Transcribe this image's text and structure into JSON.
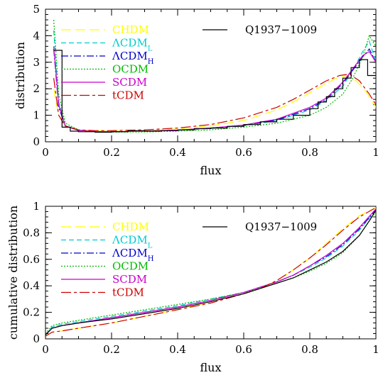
{
  "chart_data": [
    {
      "type": "line",
      "xlabel": "flux",
      "ylabel": "distribution",
      "xlim": [
        0,
        1
      ],
      "ylim": [
        0,
        5
      ],
      "xticks": [
        0,
        0.2,
        0.4,
        0.6,
        0.8,
        1
      ],
      "xtick_labels": [
        "0",
        "0.2",
        "0.4",
        "0.6",
        "0.8",
        "1"
      ],
      "yticks": [
        0,
        1,
        2,
        3,
        4,
        5
      ],
      "ytick_labels": [
        "0",
        "1",
        "2",
        "3",
        "4",
        "5"
      ],
      "legend_placement": "top",
      "observed": {
        "name": "Q1937−1009",
        "style": "histogram",
        "bin_edges": [
          0.025,
          0.05,
          0.075,
          0.1,
          0.15,
          0.2,
          0.25,
          0.3,
          0.35,
          0.4,
          0.45,
          0.5,
          0.55,
          0.6,
          0.65,
          0.7,
          0.75,
          0.8,
          0.825,
          0.85,
          0.875,
          0.9,
          0.925,
          0.95,
          0.975,
          1.0
        ],
        "values": [
          3.45,
          0.55,
          0.4,
          0.38,
          0.36,
          0.38,
          0.42,
          0.4,
          0.42,
          0.45,
          0.5,
          0.52,
          0.58,
          0.65,
          0.75,
          0.85,
          1.0,
          1.25,
          1.5,
          1.7,
          2.0,
          2.4,
          2.8,
          3.1,
          2.5
        ]
      },
      "series": [
        {
          "name": "CHDM",
          "color": "#ffff00",
          "dash": "14 6",
          "x": [
            0.025,
            0.04,
            0.06,
            0.1,
            0.15,
            0.2,
            0.3,
            0.4,
            0.5,
            0.6,
            0.7,
            0.75,
            0.8,
            0.85,
            0.88,
            0.91,
            0.94,
            0.97,
            1.0
          ],
          "y": [
            2.0,
            1.0,
            0.6,
            0.45,
            0.42,
            0.4,
            0.42,
            0.48,
            0.6,
            0.8,
            1.2,
            1.5,
            1.85,
            2.2,
            2.4,
            2.5,
            2.3,
            1.9,
            1.3
          ]
        },
        {
          "name": "ΛCDM_L",
          "color": "#00cccc",
          "dash": "7 4",
          "x": [
            0.025,
            0.04,
            0.06,
            0.1,
            0.15,
            0.2,
            0.3,
            0.4,
            0.5,
            0.6,
            0.7,
            0.8,
            0.85,
            0.9,
            0.93,
            0.96,
            0.98,
            1.0
          ],
          "y": [
            4.2,
            1.5,
            0.6,
            0.42,
            0.38,
            0.37,
            0.4,
            0.43,
            0.5,
            0.6,
            0.8,
            1.2,
            1.55,
            2.1,
            2.7,
            3.4,
            3.8,
            3.0
          ]
        },
        {
          "name": "ΛCDM_H",
          "color": "#0000cc",
          "dash": "10 3 2 3",
          "x": [
            0.025,
            0.04,
            0.06,
            0.1,
            0.15,
            0.2,
            0.3,
            0.4,
            0.5,
            0.6,
            0.7,
            0.8,
            0.85,
            0.9,
            0.93,
            0.96,
            0.98,
            1.0
          ],
          "y": [
            3.5,
            1.3,
            0.6,
            0.43,
            0.39,
            0.38,
            0.4,
            0.44,
            0.52,
            0.62,
            0.82,
            1.25,
            1.6,
            2.2,
            2.7,
            3.2,
            3.5,
            3.0
          ]
        },
        {
          "name": "OCDM",
          "color": "#00bb00",
          "dash": "2 2",
          "x": [
            0.025,
            0.04,
            0.06,
            0.1,
            0.15,
            0.2,
            0.3,
            0.4,
            0.5,
            0.6,
            0.7,
            0.8,
            0.85,
            0.9,
            0.93,
            0.96,
            0.98,
            1.0
          ],
          "y": [
            4.6,
            1.8,
            0.7,
            0.45,
            0.38,
            0.36,
            0.37,
            0.4,
            0.45,
            0.55,
            0.7,
            1.0,
            1.3,
            1.8,
            2.4,
            3.2,
            4.0,
            3.6
          ]
        },
        {
          "name": "SCDM",
          "color": "#cc00cc",
          "dash": "",
          "x": [
            0.025,
            0.04,
            0.06,
            0.1,
            0.15,
            0.2,
            0.3,
            0.4,
            0.5,
            0.6,
            0.7,
            0.8,
            0.85,
            0.9,
            0.93,
            0.96,
            0.98,
            1.0
          ],
          "y": [
            3.6,
            1.4,
            0.6,
            0.43,
            0.39,
            0.38,
            0.4,
            0.44,
            0.52,
            0.63,
            0.85,
            1.3,
            1.65,
            2.25,
            2.75,
            3.25,
            3.4,
            3.0
          ]
        },
        {
          "name": "tCDM",
          "color": "#cc0000",
          "dash": "14 4 4 4",
          "x": [
            0.025,
            0.04,
            0.06,
            0.1,
            0.15,
            0.2,
            0.3,
            0.4,
            0.5,
            0.6,
            0.7,
            0.75,
            0.8,
            0.85,
            0.89,
            0.92,
            0.95,
            0.98,
            1.0
          ],
          "y": [
            2.4,
            1.0,
            0.6,
            0.45,
            0.42,
            0.42,
            0.45,
            0.52,
            0.65,
            0.9,
            1.3,
            1.6,
            1.95,
            2.3,
            2.5,
            2.55,
            2.3,
            1.8,
            1.4
          ]
        }
      ]
    },
    {
      "type": "line",
      "xlabel": "flux",
      "ylabel": "cumulative distribution",
      "xlim": [
        0,
        1
      ],
      "ylim": [
        0,
        1
      ],
      "xticks": [
        0,
        0.2,
        0.4,
        0.6,
        0.8,
        1
      ],
      "xtick_labels": [
        "0",
        "0.2",
        "0.4",
        "0.6",
        "0.8",
        "1"
      ],
      "yticks": [
        0,
        0.2,
        0.4,
        0.6,
        0.8,
        1
      ],
      "ytick_labels": [
        "0",
        "0.2",
        "0.4",
        "0.6",
        "0.8",
        "1"
      ],
      "legend_placement": "top",
      "observed": {
        "name": "Q1937−1009",
        "style": "line",
        "x": [
          0,
          0.02,
          0.05,
          0.1,
          0.2,
          0.3,
          0.4,
          0.5,
          0.6,
          0.65,
          0.7,
          0.75,
          0.8,
          0.85,
          0.9,
          0.95,
          0.98,
          1.0
        ],
        "y": [
          0.03,
          0.08,
          0.1,
          0.12,
          0.15,
          0.19,
          0.23,
          0.28,
          0.34,
          0.38,
          0.42,
          0.46,
          0.52,
          0.58,
          0.66,
          0.78,
          0.89,
          0.97
        ]
      },
      "series": [
        {
          "name": "CHDM",
          "color": "#ffff00",
          "dash": "14 6",
          "x": [
            0,
            0.02,
            0.05,
            0.1,
            0.2,
            0.3,
            0.4,
            0.5,
            0.6,
            0.65,
            0.7,
            0.75,
            0.8,
            0.85,
            0.9,
            0.95,
            1.0
          ],
          "y": [
            0.02,
            0.05,
            0.06,
            0.08,
            0.12,
            0.17,
            0.22,
            0.28,
            0.34,
            0.38,
            0.44,
            0.52,
            0.61,
            0.72,
            0.83,
            0.93,
            0.99
          ]
        },
        {
          "name": "ΛCDM_L",
          "color": "#00cccc",
          "dash": "7 4",
          "x": [
            0,
            0.02,
            0.05,
            0.1,
            0.2,
            0.3,
            0.4,
            0.5,
            0.6,
            0.65,
            0.7,
            0.75,
            0.8,
            0.85,
            0.9,
            0.95,
            1.0
          ],
          "y": [
            0.03,
            0.09,
            0.11,
            0.13,
            0.17,
            0.21,
            0.25,
            0.3,
            0.35,
            0.39,
            0.43,
            0.48,
            0.54,
            0.61,
            0.7,
            0.82,
            0.97
          ]
        },
        {
          "name": "ΛCDM_H",
          "color": "#0000cc",
          "dash": "10 3 2 3",
          "x": [
            0,
            0.02,
            0.05,
            0.1,
            0.2,
            0.3,
            0.4,
            0.5,
            0.6,
            0.65,
            0.7,
            0.75,
            0.8,
            0.85,
            0.9,
            0.95,
            1.0
          ],
          "y": [
            0.03,
            0.08,
            0.1,
            0.12,
            0.16,
            0.2,
            0.24,
            0.29,
            0.35,
            0.39,
            0.43,
            0.48,
            0.55,
            0.62,
            0.71,
            0.83,
            0.97
          ]
        },
        {
          "name": "OCDM",
          "color": "#00bb00",
          "dash": "2 2",
          "x": [
            0,
            0.02,
            0.05,
            0.1,
            0.2,
            0.3,
            0.4,
            0.5,
            0.6,
            0.65,
            0.7,
            0.75,
            0.8,
            0.85,
            0.9,
            0.95,
            1.0
          ],
          "y": [
            0.04,
            0.1,
            0.12,
            0.14,
            0.18,
            0.22,
            0.26,
            0.3,
            0.35,
            0.38,
            0.42,
            0.46,
            0.51,
            0.57,
            0.65,
            0.78,
            0.96
          ]
        },
        {
          "name": "SCDM",
          "color": "#cc00cc",
          "dash": "",
          "x": [
            0,
            0.02,
            0.05,
            0.1,
            0.2,
            0.3,
            0.4,
            0.5,
            0.6,
            0.65,
            0.7,
            0.75,
            0.8,
            0.85,
            0.9,
            0.95,
            1.0
          ],
          "y": [
            0.03,
            0.08,
            0.1,
            0.12,
            0.16,
            0.2,
            0.24,
            0.29,
            0.35,
            0.39,
            0.43,
            0.48,
            0.55,
            0.63,
            0.72,
            0.84,
            0.98
          ]
        },
        {
          "name": "tCDM",
          "color": "#cc0000",
          "dash": "14 4 4 4",
          "x": [
            0,
            0.02,
            0.05,
            0.1,
            0.2,
            0.3,
            0.4,
            0.5,
            0.6,
            0.65,
            0.7,
            0.75,
            0.8,
            0.85,
            0.9,
            0.95,
            1.0
          ],
          "y": [
            0.02,
            0.05,
            0.06,
            0.08,
            0.12,
            0.17,
            0.22,
            0.27,
            0.34,
            0.38,
            0.44,
            0.52,
            0.61,
            0.71,
            0.82,
            0.92,
            0.99
          ]
        }
      ]
    }
  ]
}
